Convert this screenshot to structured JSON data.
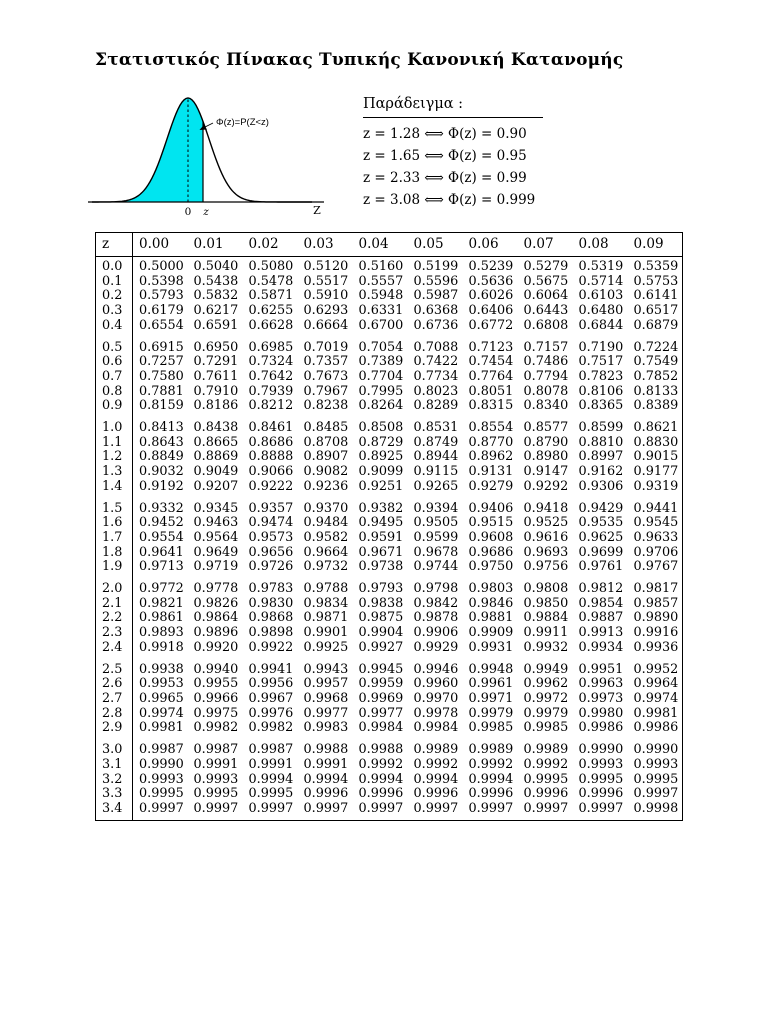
{
  "page": {
    "title": "Στατιστικός Πίνακας Τυπικής Κανονική Κατανομής"
  },
  "diagram": {
    "phi_label": "Φ(z)=P(Z<z)",
    "zero_label": "0",
    "z_label": "z",
    "axis_label": "Z",
    "fill_color": "#00e5f0"
  },
  "example": {
    "heading": "Παράδειγμα :",
    "lines": [
      "z = 1.28 ⟺ Φ(z) = 0.90",
      "z = 1.65 ⟺ Φ(z) = 0.95",
      "z = 2.33 ⟺ Φ(z) = 0.99",
      "z = 3.08 ⟺ Φ(z) = 0.999"
    ]
  },
  "chart_data": {
    "type": "table",
    "title": "Στατιστικός Πίνακας Τυπικής Κανονική Κατανομής",
    "corner_header": "z",
    "col_headers": [
      "0.00",
      "0.01",
      "0.02",
      "0.03",
      "0.04",
      "0.05",
      "0.06",
      "0.07",
      "0.08",
      "0.09"
    ],
    "row_group_size": 5,
    "rows": [
      {
        "z": "0.0",
        "values": [
          "0.5000",
          "0.5040",
          "0.5080",
          "0.5120",
          "0.5160",
          "0.5199",
          "0.5239",
          "0.5279",
          "0.5319",
          "0.5359"
        ]
      },
      {
        "z": "0.1",
        "values": [
          "0.5398",
          "0.5438",
          "0.5478",
          "0.5517",
          "0.5557",
          "0.5596",
          "0.5636",
          "0.5675",
          "0.5714",
          "0.5753"
        ]
      },
      {
        "z": "0.2",
        "values": [
          "0.5793",
          "0.5832",
          "0.5871",
          "0.5910",
          "0.5948",
          "0.5987",
          "0.6026",
          "0.6064",
          "0.6103",
          "0.6141"
        ]
      },
      {
        "z": "0.3",
        "values": [
          "0.6179",
          "0.6217",
          "0.6255",
          "0.6293",
          "0.6331",
          "0.6368",
          "0.6406",
          "0.6443",
          "0.6480",
          "0.6517"
        ]
      },
      {
        "z": "0.4",
        "values": [
          "0.6554",
          "0.6591",
          "0.6628",
          "0.6664",
          "0.6700",
          "0.6736",
          "0.6772",
          "0.6808",
          "0.6844",
          "0.6879"
        ]
      },
      {
        "z": "0.5",
        "values": [
          "0.6915",
          "0.6950",
          "0.6985",
          "0.7019",
          "0.7054",
          "0.7088",
          "0.7123",
          "0.7157",
          "0.7190",
          "0.7224"
        ]
      },
      {
        "z": "0.6",
        "values": [
          "0.7257",
          "0.7291",
          "0.7324",
          "0.7357",
          "0.7389",
          "0.7422",
          "0.7454",
          "0.7486",
          "0.7517",
          "0.7549"
        ]
      },
      {
        "z": "0.7",
        "values": [
          "0.7580",
          "0.7611",
          "0.7642",
          "0.7673",
          "0.7704",
          "0.7734",
          "0.7764",
          "0.7794",
          "0.7823",
          "0.7852"
        ]
      },
      {
        "z": "0.8",
        "values": [
          "0.7881",
          "0.7910",
          "0.7939",
          "0.7967",
          "0.7995",
          "0.8023",
          "0.8051",
          "0.8078",
          "0.8106",
          "0.8133"
        ]
      },
      {
        "z": "0.9",
        "values": [
          "0.8159",
          "0.8186",
          "0.8212",
          "0.8238",
          "0.8264",
          "0.8289",
          "0.8315",
          "0.8340",
          "0.8365",
          "0.8389"
        ]
      },
      {
        "z": "1.0",
        "values": [
          "0.8413",
          "0.8438",
          "0.8461",
          "0.8485",
          "0.8508",
          "0.8531",
          "0.8554",
          "0.8577",
          "0.8599",
          "0.8621"
        ]
      },
      {
        "z": "1.1",
        "values": [
          "0.8643",
          "0.8665",
          "0.8686",
          "0.8708",
          "0.8729",
          "0.8749",
          "0.8770",
          "0.8790",
          "0.8810",
          "0.8830"
        ]
      },
      {
        "z": "1.2",
        "values": [
          "0.8849",
          "0.8869",
          "0.8888",
          "0.8907",
          "0.8925",
          "0.8944",
          "0.8962",
          "0.8980",
          "0.8997",
          "0.9015"
        ]
      },
      {
        "z": "1.3",
        "values": [
          "0.9032",
          "0.9049",
          "0.9066",
          "0.9082",
          "0.9099",
          "0.9115",
          "0.9131",
          "0.9147",
          "0.9162",
          "0.9177"
        ]
      },
      {
        "z": "1.4",
        "values": [
          "0.9192",
          "0.9207",
          "0.9222",
          "0.9236",
          "0.9251",
          "0.9265",
          "0.9279",
          "0.9292",
          "0.9306",
          "0.9319"
        ]
      },
      {
        "z": "1.5",
        "values": [
          "0.9332",
          "0.9345",
          "0.9357",
          "0.9370",
          "0.9382",
          "0.9394",
          "0.9406",
          "0.9418",
          "0.9429",
          "0.9441"
        ]
      },
      {
        "z": "1.6",
        "values": [
          "0.9452",
          "0.9463",
          "0.9474",
          "0.9484",
          "0.9495",
          "0.9505",
          "0.9515",
          "0.9525",
          "0.9535",
          "0.9545"
        ]
      },
      {
        "z": "1.7",
        "values": [
          "0.9554",
          "0.9564",
          "0.9573",
          "0.9582",
          "0.9591",
          "0.9599",
          "0.9608",
          "0.9616",
          "0.9625",
          "0.9633"
        ]
      },
      {
        "z": "1.8",
        "values": [
          "0.9641",
          "0.9649",
          "0.9656",
          "0.9664",
          "0.9671",
          "0.9678",
          "0.9686",
          "0.9693",
          "0.9699",
          "0.9706"
        ]
      },
      {
        "z": "1.9",
        "values": [
          "0.9713",
          "0.9719",
          "0.9726",
          "0.9732",
          "0.9738",
          "0.9744",
          "0.9750",
          "0.9756",
          "0.9761",
          "0.9767"
        ]
      },
      {
        "z": "2.0",
        "values": [
          "0.9772",
          "0.9778",
          "0.9783",
          "0.9788",
          "0.9793",
          "0.9798",
          "0.9803",
          "0.9808",
          "0.9812",
          "0.9817"
        ]
      },
      {
        "z": "2.1",
        "values": [
          "0.9821",
          "0.9826",
          "0.9830",
          "0.9834",
          "0.9838",
          "0.9842",
          "0.9846",
          "0.9850",
          "0.9854",
          "0.9857"
        ]
      },
      {
        "z": "2.2",
        "values": [
          "0.9861",
          "0.9864",
          "0.9868",
          "0.9871",
          "0.9875",
          "0.9878",
          "0.9881",
          "0.9884",
          "0.9887",
          "0.9890"
        ]
      },
      {
        "z": "2.3",
        "values": [
          "0.9893",
          "0.9896",
          "0.9898",
          "0.9901",
          "0.9904",
          "0.9906",
          "0.9909",
          "0.9911",
          "0.9913",
          "0.9916"
        ]
      },
      {
        "z": "2.4",
        "values": [
          "0.9918",
          "0.9920",
          "0.9922",
          "0.9925",
          "0.9927",
          "0.9929",
          "0.9931",
          "0.9932",
          "0.9934",
          "0.9936"
        ]
      },
      {
        "z": "2.5",
        "values": [
          "0.9938",
          "0.9940",
          "0.9941",
          "0.9943",
          "0.9945",
          "0.9946",
          "0.9948",
          "0.9949",
          "0.9951",
          "0.9952"
        ]
      },
      {
        "z": "2.6",
        "values": [
          "0.9953",
          "0.9955",
          "0.9956",
          "0.9957",
          "0.9959",
          "0.9960",
          "0.9961",
          "0.9962",
          "0.9963",
          "0.9964"
        ]
      },
      {
        "z": "2.7",
        "values": [
          "0.9965",
          "0.9966",
          "0.9967",
          "0.9968",
          "0.9969",
          "0.9970",
          "0.9971",
          "0.9972",
          "0.9973",
          "0.9974"
        ]
      },
      {
        "z": "2.8",
        "values": [
          "0.9974",
          "0.9975",
          "0.9976",
          "0.9977",
          "0.9977",
          "0.9978",
          "0.9979",
          "0.9979",
          "0.9980",
          "0.9981"
        ]
      },
      {
        "z": "2.9",
        "values": [
          "0.9981",
          "0.9982",
          "0.9982",
          "0.9983",
          "0.9984",
          "0.9984",
          "0.9985",
          "0.9985",
          "0.9986",
          "0.9986"
        ]
      },
      {
        "z": "3.0",
        "values": [
          "0.9987",
          "0.9987",
          "0.9987",
          "0.9988",
          "0.9988",
          "0.9989",
          "0.9989",
          "0.9989",
          "0.9990",
          "0.9990"
        ]
      },
      {
        "z": "3.1",
        "values": [
          "0.9990",
          "0.9991",
          "0.9991",
          "0.9991",
          "0.9992",
          "0.9992",
          "0.9992",
          "0.9992",
          "0.9993",
          "0.9993"
        ]
      },
      {
        "z": "3.2",
        "values": [
          "0.9993",
          "0.9993",
          "0.9994",
          "0.9994",
          "0.9994",
          "0.9994",
          "0.9994",
          "0.9995",
          "0.9995",
          "0.9995"
        ]
      },
      {
        "z": "3.3",
        "values": [
          "0.9995",
          "0.9995",
          "0.9995",
          "0.9996",
          "0.9996",
          "0.9996",
          "0.9996",
          "0.9996",
          "0.9996",
          "0.9997"
        ]
      },
      {
        "z": "3.4",
        "values": [
          "0.9997",
          "0.9997",
          "0.9997",
          "0.9997",
          "0.9997",
          "0.9997",
          "0.9997",
          "0.9997",
          "0.9997",
          "0.9998"
        ]
      }
    ]
  }
}
